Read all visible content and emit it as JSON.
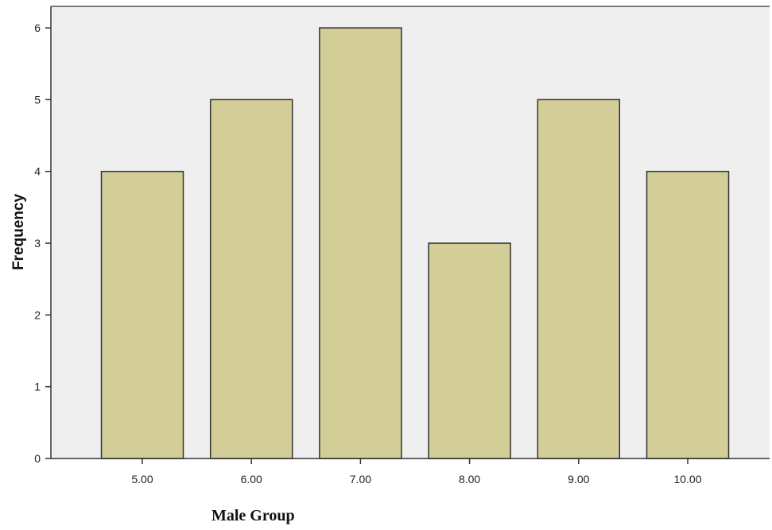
{
  "chart_data": {
    "type": "bar",
    "categories": [
      "5.00",
      "6.00",
      "7.00",
      "8.00",
      "9.00",
      "10.00"
    ],
    "values": [
      4,
      5,
      6,
      3,
      5,
      4
    ],
    "xlabel": "Male Group",
    "ylabel": "Frequency",
    "ylim": [
      0,
      6.3
    ],
    "yticks": [
      "0",
      "1",
      "2",
      "3",
      "4",
      "5",
      "6"
    ],
    "grid": false,
    "colors": {
      "bar_fill": "#d3cd98",
      "bar_stroke": "#333333",
      "plot_background": "#efefef",
      "axis": "#333333"
    }
  }
}
